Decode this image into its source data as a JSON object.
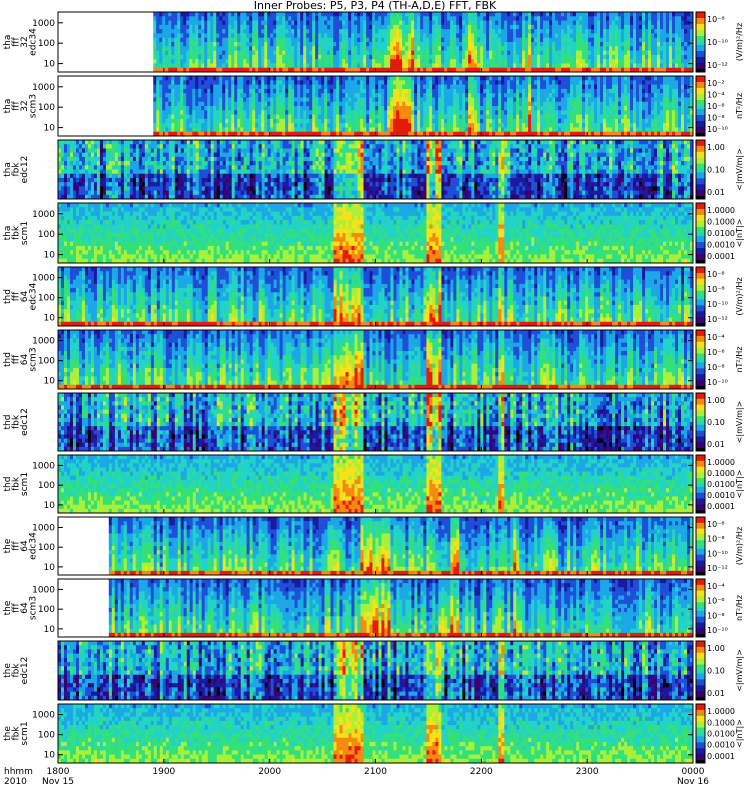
{
  "title": "Inner Probes: P5, P3, P4 (TH-A,D,E) FFT, FBK",
  "x_axis": {
    "row_label_1": "hhmm",
    "row_label_2": "2010",
    "ticks": [
      {
        "value": "1800",
        "sub": "Nov 15"
      },
      {
        "value": "1900",
        "sub": ""
      },
      {
        "value": "2000",
        "sub": ""
      },
      {
        "value": "2100",
        "sub": ""
      },
      {
        "value": "2200",
        "sub": ""
      },
      {
        "value": "2300",
        "sub": ""
      },
      {
        "value": "0000",
        "sub": "Nov 16"
      }
    ]
  },
  "chart_data": {
    "type": "heatmap",
    "x": {
      "start": "1800",
      "end": "0000",
      "unit": "hhmm"
    },
    "panels": [
      {
        "name": "tha fff_32 edc34",
        "lines": [
          "tha",
          "fff",
          "32",
          "edc34"
        ],
        "yticks": [
          "1000",
          "100",
          "10"
        ],
        "ylog": true,
        "cbar_ticks": [
          "10⁻⁸",
          "10⁻¹⁰",
          "10⁻¹²"
        ],
        "cbar_label": "(V/m)²/Hz",
        "start_frac": 0.15
      },
      {
        "name": "tha fff_32 scm3",
        "lines": [
          "tha",
          "fff",
          "32",
          "scm3"
        ],
        "yticks": [
          "1000",
          "100",
          "10"
        ],
        "ylog": true,
        "cbar_ticks": [
          "10⁻²",
          "10⁻⁴",
          "10⁻⁶",
          "10⁻⁸",
          "10⁻¹⁰"
        ],
        "cbar_label": "nT²/Hz",
        "start_frac": 0.15
      },
      {
        "name": "tha fbk edc12",
        "lines": [
          "tha",
          "fbk",
          "edc12"
        ],
        "yticks": [],
        "ylog": false,
        "cbar_ticks": [
          "1.00",
          "0.10",
          "0.01"
        ],
        "cbar_label": "<|mV/m|>",
        "start_frac": 0.0
      },
      {
        "name": "tha fbk scm1",
        "lines": [
          "tha",
          "fbk",
          "scm1"
        ],
        "yticks": [
          "1000",
          "100",
          "10"
        ],
        "ylog": true,
        "cbar_ticks": [
          "1.0000",
          "0.1000",
          "0.0100",
          "0.0010",
          "0.0001"
        ],
        "cbar_label": "<|nT|>",
        "start_frac": 0.0
      },
      {
        "name": "thd fff_64 edc34",
        "lines": [
          "thd",
          "fff",
          "64",
          "edc34"
        ],
        "yticks": [
          "1000",
          "100",
          "10"
        ],
        "ylog": true,
        "cbar_ticks": [
          "10⁻⁶",
          "10⁻⁸",
          "10⁻¹⁰",
          "10⁻¹²"
        ],
        "cbar_label": "(V/m)²/Hz",
        "start_frac": 0.0
      },
      {
        "name": "thd fff_64 scm3",
        "lines": [
          "thd",
          "fff",
          "64",
          "scm3"
        ],
        "yticks": [
          "1000",
          "100",
          "10"
        ],
        "ylog": true,
        "cbar_ticks": [
          "10⁻⁴",
          "10⁻⁶",
          "10⁻⁸",
          "10⁻¹⁰"
        ],
        "cbar_label": "nT²/Hz",
        "start_frac": 0.0
      },
      {
        "name": "thd fbk edc12",
        "lines": [
          "thd",
          "fbk",
          "edc12"
        ],
        "yticks": [],
        "ylog": false,
        "cbar_ticks": [
          "1.00",
          "0.10",
          "0.01"
        ],
        "cbar_label": "<|mV/m|>",
        "start_frac": 0.0
      },
      {
        "name": "thd fbk scm1",
        "lines": [
          "thd",
          "fbk",
          "scm1"
        ],
        "yticks": [
          "1000",
          "100",
          "10"
        ],
        "ylog": true,
        "cbar_ticks": [
          "1.0000",
          "0.1000",
          "0.0100",
          "0.0010",
          "0.0001"
        ],
        "cbar_label": "<|nT|>",
        "start_frac": 0.0
      },
      {
        "name": "the fff_64 edc34",
        "lines": [
          "the",
          "fff",
          "64",
          "edc34"
        ],
        "yticks": [
          "1000",
          "100",
          "10"
        ],
        "ylog": true,
        "cbar_ticks": [
          "10⁻⁶",
          "10⁻⁸",
          "10⁻¹⁰",
          "10⁻¹²"
        ],
        "cbar_label": "(V/m)²/Hz",
        "start_frac": 0.08
      },
      {
        "name": "the fff_64 scm3",
        "lines": [
          "the",
          "fff",
          "64",
          "scm3"
        ],
        "yticks": [
          "1000",
          "100",
          "10"
        ],
        "ylog": true,
        "cbar_ticks": [
          "10⁻⁴",
          "10⁻⁶",
          "10⁻⁸",
          "10⁻¹⁰"
        ],
        "cbar_label": "nT²/Hz",
        "start_frac": 0.08
      },
      {
        "name": "the fbk edc12",
        "lines": [
          "the",
          "fbk",
          "edc12"
        ],
        "yticks": [],
        "ylog": false,
        "cbar_ticks": [
          "1.00",
          "0.10",
          "0.01"
        ],
        "cbar_label": "<|mV/m|>",
        "start_frac": 0.0
      },
      {
        "name": "the fbk scm1",
        "lines": [
          "the",
          "fbk",
          "scm1"
        ],
        "yticks": [
          "1000",
          "100",
          "10"
        ],
        "ylog": true,
        "cbar_ticks": [
          "1.0000",
          "0.1000",
          "0.0100",
          "0.0010",
          "0.0001"
        ],
        "cbar_label": "<|nT|>",
        "start_frac": 0.0
      }
    ],
    "colormap": [
      "#000000",
      "#3a0070",
      "#1a1aa0",
      "#1f4fd8",
      "#1ca7e6",
      "#22d3c6",
      "#33e07a",
      "#a8f03a",
      "#f7e21a",
      "#f58a10",
      "#e51b0c"
    ]
  }
}
